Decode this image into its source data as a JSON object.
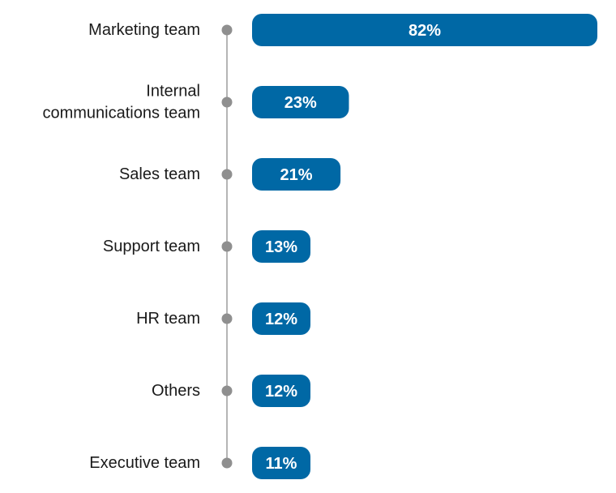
{
  "colors": {
    "bar": "#0068A5",
    "axis": "#b5b5b5",
    "dot": "#8f8f8f",
    "label": "#1a1a1a",
    "value_text": "#ffffff"
  },
  "chart_data": {
    "type": "bar",
    "orientation": "horizontal",
    "categories": [
      "Marketing team",
      "Internal communications team",
      "Sales team",
      "Support team",
      "HR team",
      "Others",
      "Executive team"
    ],
    "category_lines": [
      [
        "Marketing team"
      ],
      [
        "Internal",
        "communications team"
      ],
      [
        "Sales team"
      ],
      [
        "Support team"
      ],
      [
        "HR team"
      ],
      [
        "Others"
      ],
      [
        "Executive team"
      ]
    ],
    "values": [
      82,
      23,
      21,
      13,
      12,
      12,
      11
    ],
    "value_labels": [
      "82%",
      "23%",
      "21%",
      "13%",
      "12%",
      "12%",
      "11%"
    ],
    "unit": "%",
    "title": "",
    "xlabel": "",
    "ylabel": "",
    "xlim": [
      0,
      82
    ],
    "grid": false,
    "legend": "none"
  }
}
